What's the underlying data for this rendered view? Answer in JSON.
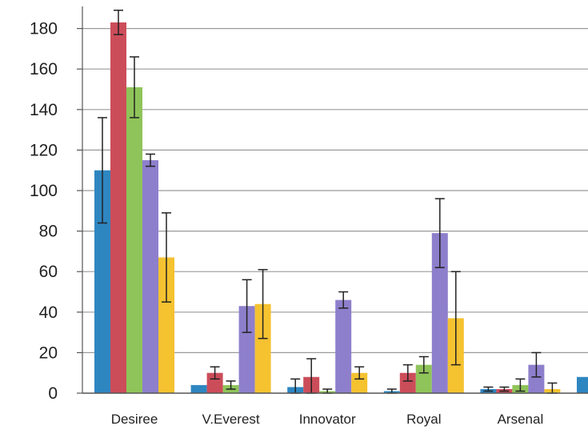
{
  "chart_data": {
    "type": "bar",
    "categories": [
      "Desiree",
      "V.Everest",
      "Innovator",
      "Royal",
      "Arsenal",
      ""
    ],
    "series": [
      {
        "color": "#2e86c1",
        "values": [
          110,
          4,
          3,
          1,
          2,
          8
        ],
        "errors": [
          26,
          0,
          4,
          1,
          1,
          0
        ]
      },
      {
        "color": "#cc4d5a",
        "values": [
          183,
          10,
          8,
          10,
          2,
          0
        ],
        "errors": [
          6,
          3,
          9,
          4,
          1,
          0
        ]
      },
      {
        "color": "#8fc45a",
        "values": [
          151,
          4,
          1,
          14,
          4,
          0
        ],
        "errors": [
          15,
          2,
          1,
          4,
          3,
          0
        ]
      },
      {
        "color": "#8e7fcc",
        "values": [
          115,
          43,
          46,
          79,
          14,
          0
        ],
        "errors": [
          3,
          13,
          4,
          17,
          6,
          0
        ]
      },
      {
        "color": "#f5c230",
        "values": [
          67,
          44,
          10,
          37,
          2,
          0
        ],
        "errors": [
          22,
          17,
          3,
          23,
          3,
          0
        ]
      }
    ],
    "yticks": [
      "0",
      "20",
      "40",
      "60",
      "80",
      "100",
      "120",
      "140",
      "160",
      "180"
    ],
    "ylim": [
      0,
      185
    ],
    "grid": true,
    "title": "",
    "xlabel": "",
    "ylabel": ""
  }
}
